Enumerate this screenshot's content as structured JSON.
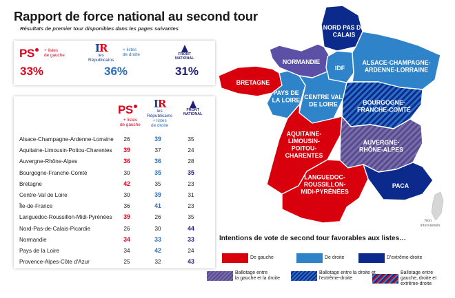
{
  "title": "Rapport de force national au second tour",
  "subtitle": "Résultats de premier tour disponibles dans les pages suivantes",
  "parties": {
    "ps": {
      "mark": "PS",
      "tag_line1": "+ listes",
      "tag_line2": "de gauche",
      "tag_line3": "",
      "pct": "33%"
    },
    "lr": {
      "mark_l": "I",
      "mark_r": "R",
      "name_line1": "les",
      "name_line2": "Républicains",
      "tag_line1": "+ listes",
      "tag_line2": "de droite",
      "pct": "36%"
    },
    "fn": {
      "name_line1": "FRONT",
      "name_line2": "NATIONAL",
      "pct": "31%"
    }
  },
  "table": {
    "rows": [
      {
        "region": "Alsace-Champagne-Ardenne-Lorraine",
        "ps": "26",
        "lr": "39",
        "fn": "35",
        "winner": "lr"
      },
      {
        "region": "Aquitaine-Limousin-Poitou-Charentes",
        "ps": "39",
        "lr": "37",
        "fn": "24",
        "winner": "ps"
      },
      {
        "region": "Auvergne-Rhône-Alpes",
        "ps": "36",
        "lr": "36",
        "fn": "28",
        "winner": "tie-ps-lr"
      },
      {
        "region": "Bourgogne-Franche-Comté",
        "ps": "30",
        "lr": "35",
        "fn": "35",
        "winner": "tie-lr-fn"
      },
      {
        "region": "Bretagne",
        "ps": "42",
        "lr": "35",
        "fn": "23",
        "winner": "ps"
      },
      {
        "region": "Centre-Val de Loire",
        "ps": "30",
        "lr": "39",
        "fn": "31",
        "winner": "lr"
      },
      {
        "region": "Île-de-France",
        "ps": "36",
        "lr": "41",
        "fn": "23",
        "winner": "lr"
      },
      {
        "region": "Languedoc-Roussillon-Midi-Pyrénées",
        "ps": "39",
        "lr": "26",
        "fn": "35",
        "winner": "ps"
      },
      {
        "region": "Nord-Pas-de-Calais-Picardie",
        "ps": "26",
        "lr": "30",
        "fn": "44",
        "winner": "fn"
      },
      {
        "region": "Normandie",
        "ps": "34",
        "lr": "33",
        "fn": "33",
        "winner": "all"
      },
      {
        "region": "Pays de la Loire",
        "ps": "34",
        "lr": "42",
        "fn": "24",
        "winner": "lr"
      },
      {
        "region": "Provence-Alpes-Côte d'Azur",
        "ps": "25",
        "lr": "32",
        "fn": "43",
        "winner": "fn"
      }
    ]
  },
  "map": {
    "regions": [
      {
        "key": "nord",
        "label_lines": [
          "NORD PAS DE",
          "CALAIS"
        ],
        "fill": "dblue"
      },
      {
        "key": "normandie",
        "label_lines": [
          "NORMANDIE"
        ],
        "fill": "purple"
      },
      {
        "key": "idf",
        "label_lines": [
          "IDF"
        ],
        "fill": "blue"
      },
      {
        "key": "acal",
        "label_lines": [
          "ALSACE-CHAMPAGNE-",
          "ARDENNE-LORRAINE"
        ],
        "fill": "blue"
      },
      {
        "key": "bretagne",
        "label_lines": [
          "BRETAGNE"
        ],
        "fill": "red"
      },
      {
        "key": "pdl",
        "label_lines": [
          "PAYS DE",
          "LA LOIRE"
        ],
        "fill": "blue"
      },
      {
        "key": "cvl",
        "label_lines": [
          "CENTRE VAL",
          "DE LOIRE"
        ],
        "fill": "blue"
      },
      {
        "key": "bfc",
        "label_lines": [
          "BOURGOGNE-",
          "FRANCHE-COMTÉ"
        ],
        "fill": "hatch-db"
      },
      {
        "key": "alpc",
        "label_lines": [
          "AQUITAINE-",
          "LIMOUSIN-",
          "POITOU-",
          "CHARENTES"
        ],
        "fill": "red"
      },
      {
        "key": "ara",
        "label_lines": [
          "AUVERGNE-",
          "RHÔNE-ALPES"
        ],
        "fill": "hatch-pr"
      },
      {
        "key": "lrmp",
        "label_lines": [
          "LANGUEDOC-",
          "ROUSSILLON-",
          "MIDI-PYRÉNÉES"
        ],
        "fill": "red"
      },
      {
        "key": "paca",
        "label_lines": [
          "PACA"
        ],
        "fill": "dblue"
      }
    ],
    "corsica_note_line1": "Non",
    "corsica_note_line2": "interviewés"
  },
  "legend": {
    "title": "Intentions de vote de second tour favorables aux listes…",
    "items": [
      {
        "key": "gauche",
        "lines": [
          "De gauche"
        ]
      },
      {
        "key": "droite",
        "lines": [
          "De droite"
        ]
      },
      {
        "key": "extreme",
        "lines": [
          "D'extrême-droite"
        ]
      },
      {
        "key": "ball-gd",
        "lines": [
          "Ballotage entre",
          "la gauche et la droite"
        ]
      },
      {
        "key": "ball-de",
        "lines": [
          "Ballotage entre la droite et",
          "l'extrême-droite"
        ]
      },
      {
        "key": "ball-3",
        "lines": [
          "Ballotage entre",
          "gauche, droite et",
          "extrême-droite"
        ]
      }
    ]
  },
  "colors": {
    "red": "#d8000c",
    "blue": "#2f83c9",
    "dblue": "#0c2a8c",
    "purple": "#5b4fa6",
    "ps_red": "#e2001a",
    "lr_blue": "#2a6ebb",
    "fn_navy": "#1f1f7a"
  }
}
